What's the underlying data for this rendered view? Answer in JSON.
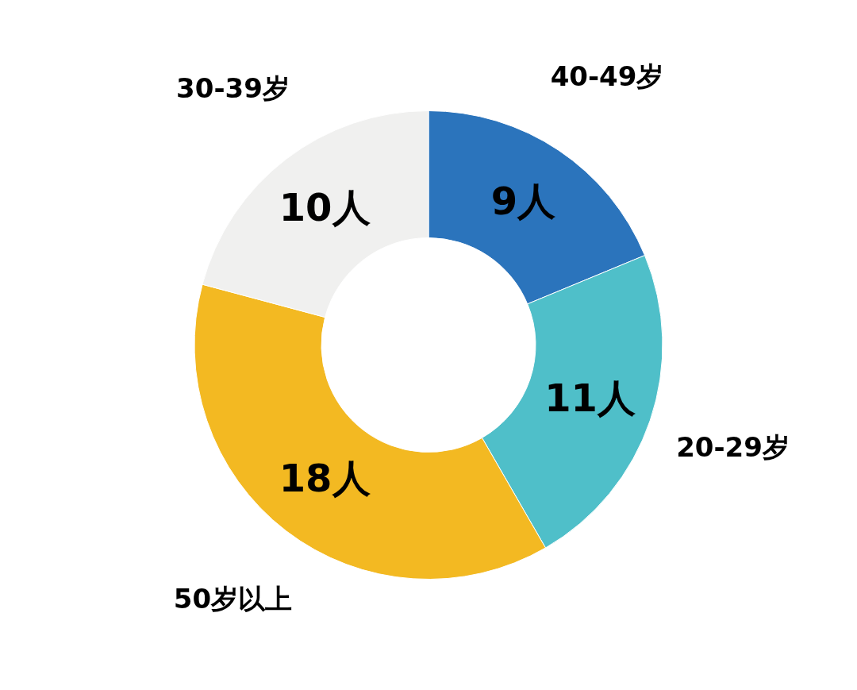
{
  "chart_data": {
    "type": "donut",
    "categories": [
      "40-49岁",
      "20-29岁",
      "50岁以上",
      "30-39岁"
    ],
    "values": [
      9,
      11,
      18,
      10
    ],
    "colors": [
      "#2b74bc",
      "#4fbfc9",
      "#f3b922",
      "#f0f0ef"
    ],
    "value_labels": [
      "9人",
      "11人",
      "18人",
      "10人"
    ]
  }
}
